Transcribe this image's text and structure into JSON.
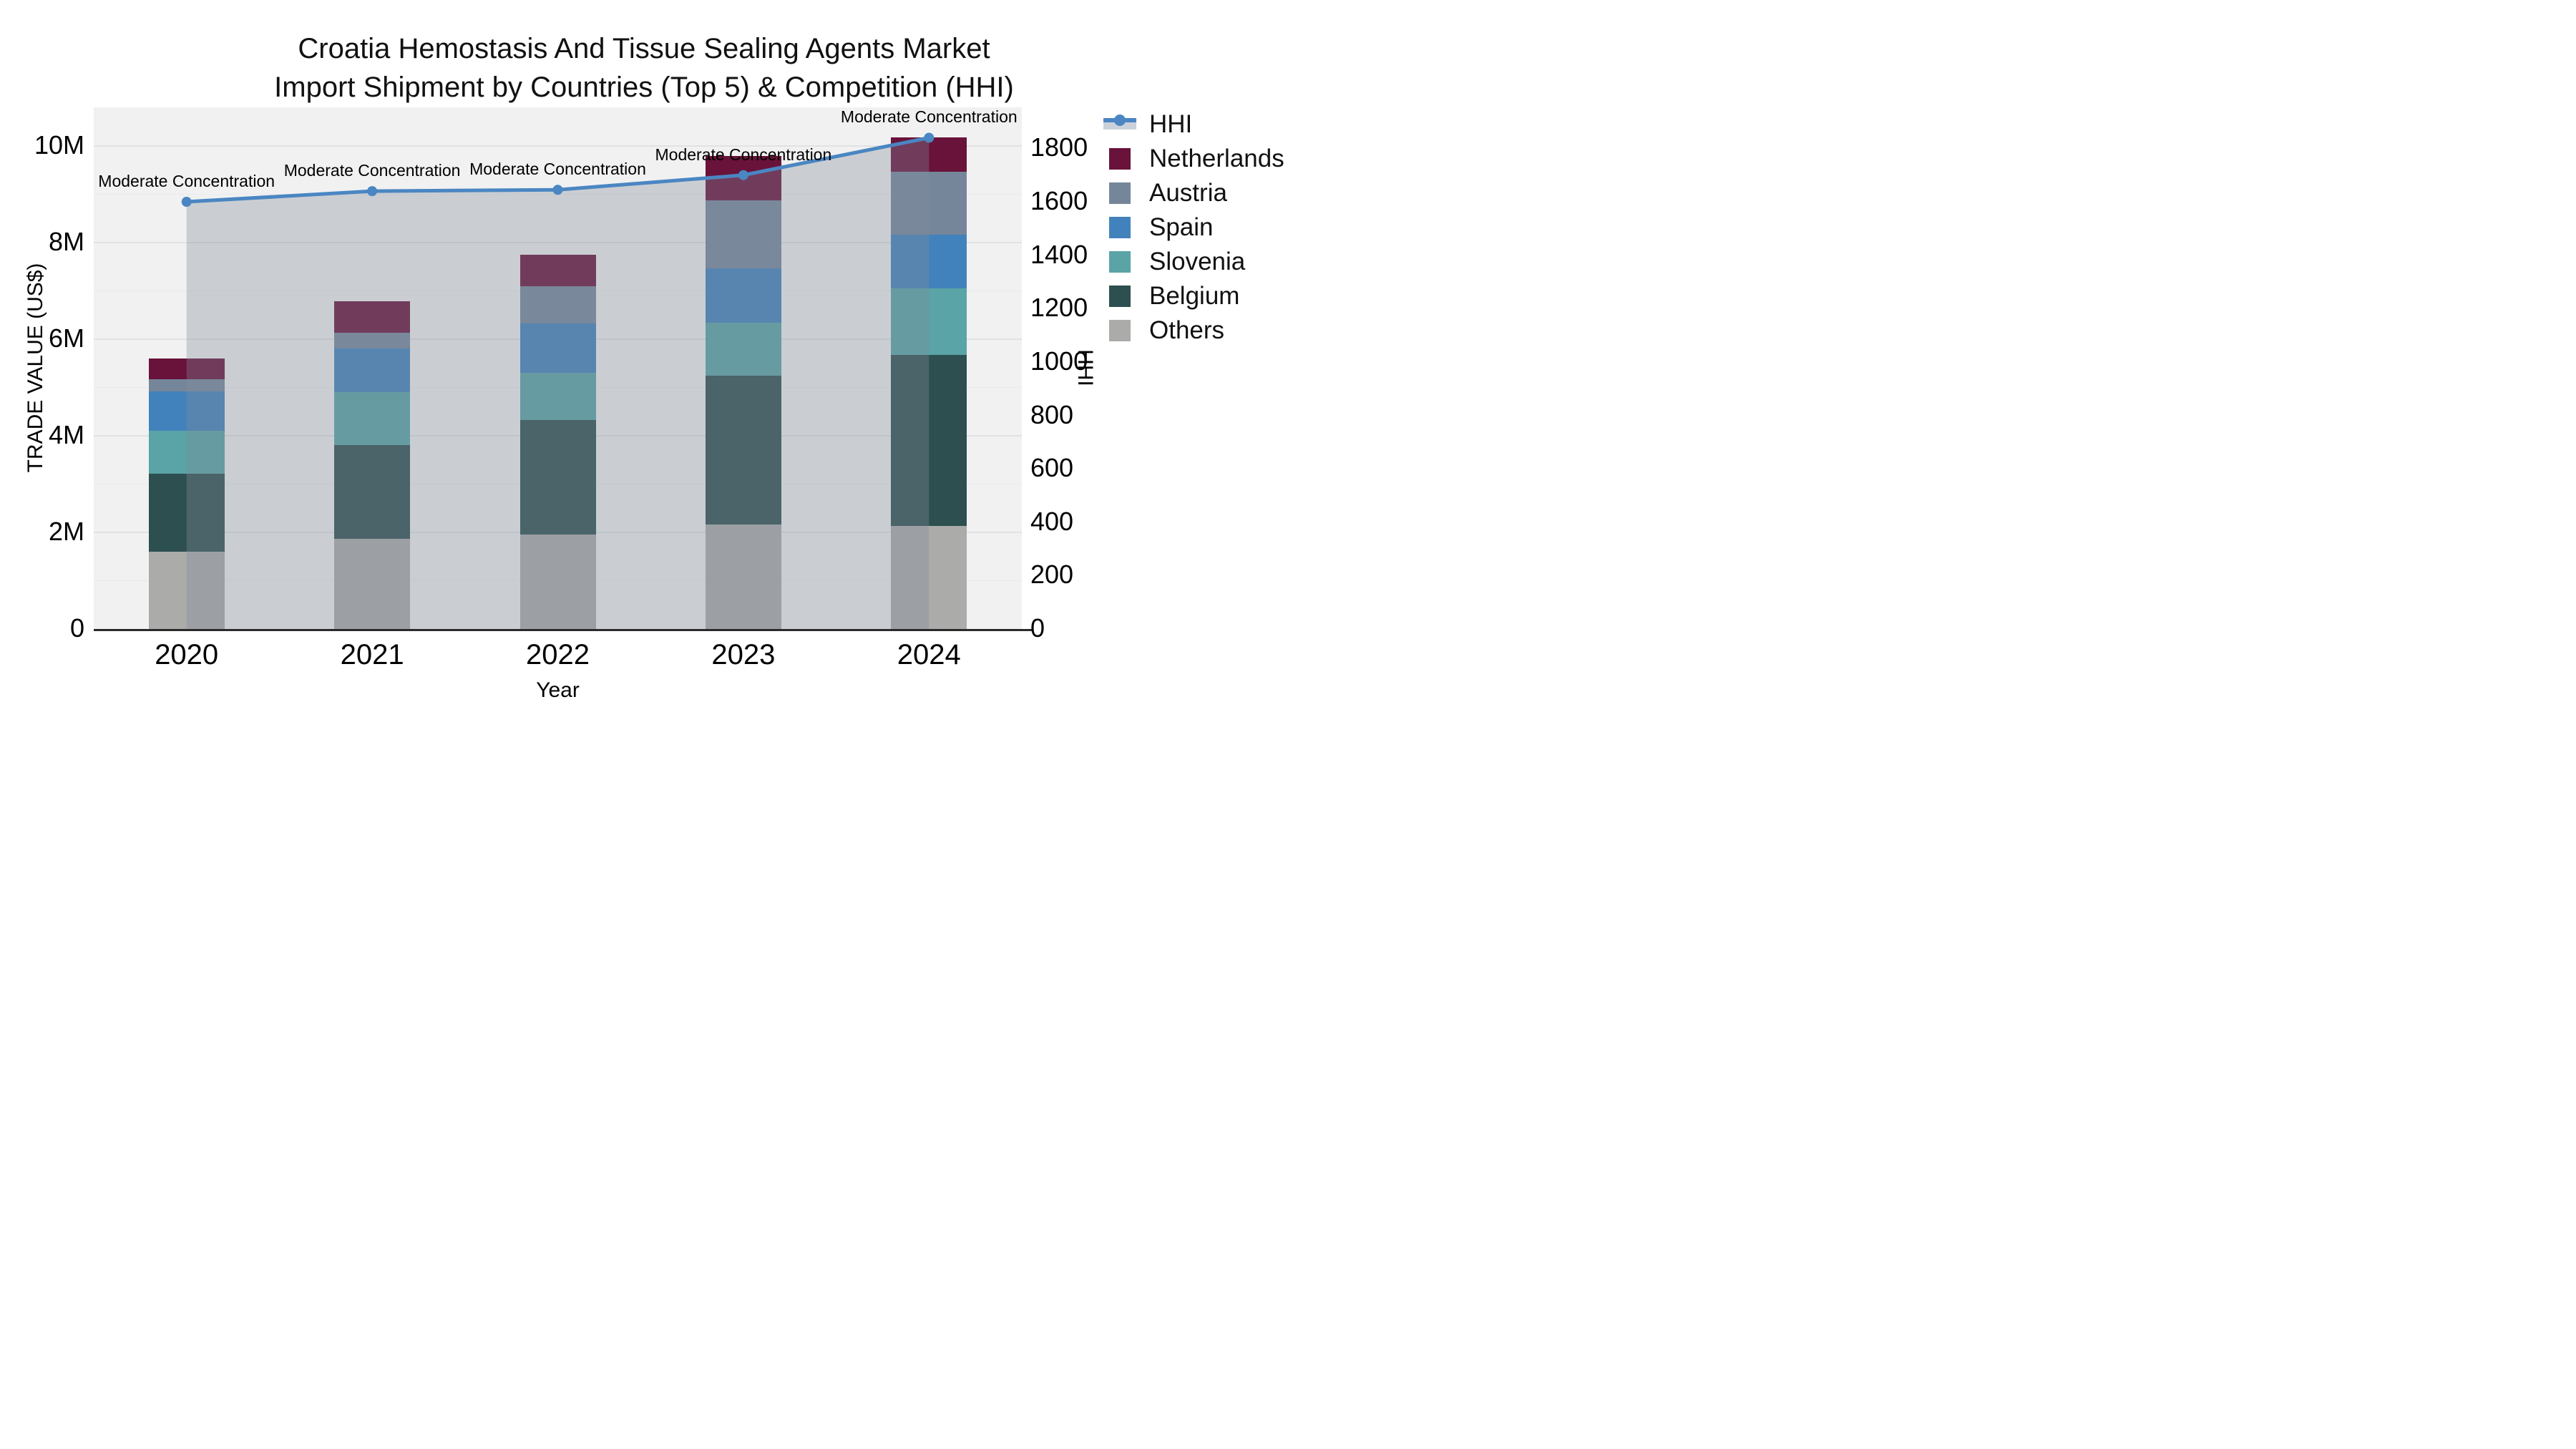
{
  "title": {
    "line1": "Croatia Hemostasis And Tissue Sealing Agents Market",
    "line2": "Import Shipment by Countries (Top 5) & Competition (HHI)"
  },
  "chart_data": {
    "type": "stacked-bar+line",
    "categories": [
      "2020",
      "2021",
      "2022",
      "2023",
      "2024"
    ],
    "bar_unit": "trade value, millions of US$",
    "series": [
      {
        "name": "Others",
        "color": "#abab a9",
        "values": [
          1.6,
          1.87,
          1.95,
          2.16,
          2.14
        ]
      },
      {
        "name": "Belgium",
        "color": "#2d4f4f",
        "values": [
          1.62,
          1.94,
          2.37,
          3.09,
          3.53
        ]
      },
      {
        "name": "Slovenia",
        "color": "#5aa3a6",
        "values": [
          0.88,
          1.1,
          0.98,
          1.09,
          1.38
        ]
      },
      {
        "name": "Spain",
        "color": "#4282bc",
        "values": [
          0.82,
          0.9,
          1.02,
          1.13,
          1.12
        ]
      },
      {
        "name": "Austria",
        "color": "#75869a",
        "values": [
          0.25,
          0.32,
          0.78,
          1.41,
          1.3
        ]
      },
      {
        "name": "Netherlands",
        "color": "#69123a",
        "values": [
          0.43,
          0.66,
          0.65,
          0.92,
          0.71
        ]
      }
    ],
    "line_series": {
      "name": "HHI",
      "color": "#4a86c2",
      "band_fill": "rgba(128,141,154,0.35)",
      "values": [
        1600,
        1640,
        1645,
        1700,
        1840
      ],
      "annotations": [
        "Moderate Concentration",
        "Moderate Concentration",
        "Moderate Concentration",
        "Moderate Concentration",
        "Moderate Concentration"
      ]
    },
    "y_left": {
      "label": "TRADE VALUE (US$)",
      "ticks": [
        "0",
        "2M",
        "4M",
        "6M",
        "8M",
        "10M"
      ],
      "tick_values_m": [
        0,
        2,
        4,
        6,
        8,
        10
      ],
      "range_m": [
        0,
        10.8
      ],
      "grid": true
    },
    "y_right": {
      "label": "HHI",
      "ticks": [
        "0",
        "200",
        "400",
        "600",
        "800",
        "1000",
        "1200",
        "1400",
        "1600",
        "1800"
      ],
      "tick_values": [
        0,
        200,
        400,
        600,
        800,
        1000,
        1200,
        1400,
        1600,
        1800
      ],
      "range": [
        0,
        1953
      ]
    },
    "x": {
      "label": "Year"
    },
    "legend_position": "right",
    "legend": [
      "HHI",
      "Netherlands",
      "Austria",
      "Spain",
      "Slovenia",
      "Belgium",
      "Others"
    ]
  }
}
